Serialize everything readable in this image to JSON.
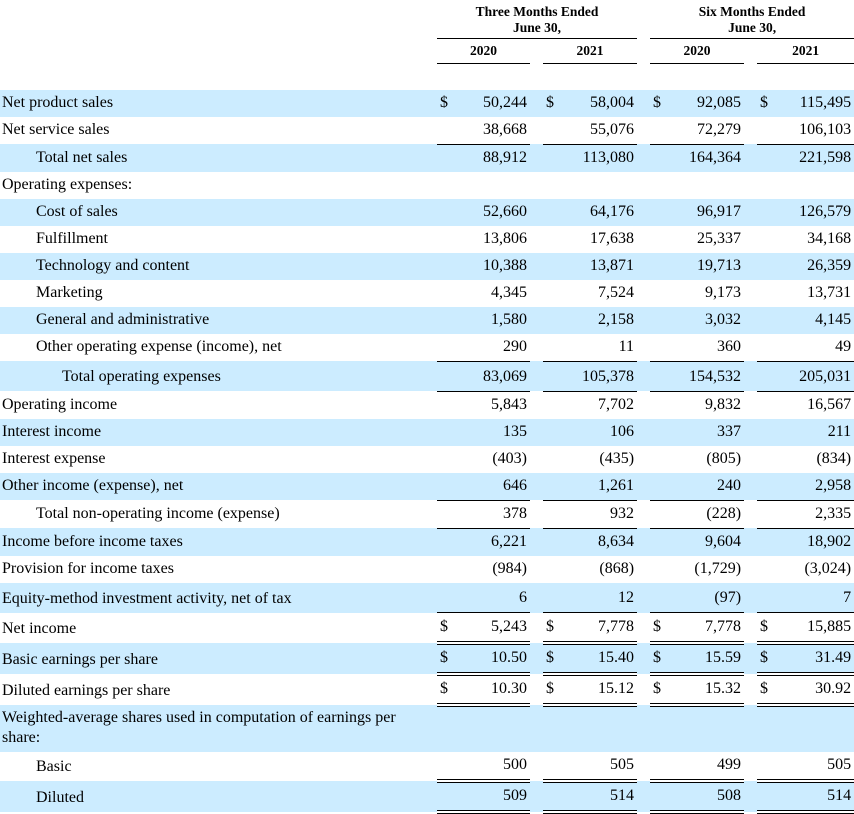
{
  "colors": {
    "row_stripe": "#CCECFF",
    "rule": "#000000",
    "background": "#FFFFFF"
  },
  "table": {
    "currency_symbol": "$",
    "groups": [
      {
        "title_line1": "Three Months Ended",
        "title_line2": "June 30,",
        "years": [
          "2020",
          "2021"
        ]
      },
      {
        "title_line1": "Six Months Ended",
        "title_line2": "June 30,",
        "years": [
          "2020",
          "2021"
        ]
      }
    ],
    "rows": [
      {
        "label": "Net product sales",
        "indent": 0,
        "shade": true,
        "dollar": true,
        "values": [
          "50,244",
          "58,004",
          "92,085",
          "115,495"
        ],
        "rule": "none",
        "tall": false
      },
      {
        "label": "Net service sales",
        "indent": 0,
        "shade": false,
        "dollar": false,
        "values": [
          "38,668",
          "55,076",
          "72,279",
          "106,103"
        ],
        "rule": "single",
        "tall": false
      },
      {
        "label": "Total net sales",
        "indent": 1,
        "shade": true,
        "dollar": false,
        "values": [
          "88,912",
          "113,080",
          "164,364",
          "221,598"
        ],
        "rule": "none",
        "tall": false
      },
      {
        "label": "Operating expenses:",
        "indent": 0,
        "shade": false,
        "dollar": false,
        "values": null,
        "rule": "none",
        "tall": false
      },
      {
        "label": "Cost of sales",
        "indent": 1,
        "shade": true,
        "dollar": false,
        "values": [
          "52,660",
          "64,176",
          "96,917",
          "126,579"
        ],
        "rule": "none",
        "tall": false
      },
      {
        "label": "Fulfillment",
        "indent": 1,
        "shade": false,
        "dollar": false,
        "values": [
          "13,806",
          "17,638",
          "25,337",
          "34,168"
        ],
        "rule": "none",
        "tall": false
      },
      {
        "label": "Technology and content",
        "indent": 1,
        "shade": true,
        "dollar": false,
        "values": [
          "10,388",
          "13,871",
          "19,713",
          "26,359"
        ],
        "rule": "none",
        "tall": false
      },
      {
        "label": "Marketing",
        "indent": 1,
        "shade": false,
        "dollar": false,
        "values": [
          "4,345",
          "7,524",
          "9,173",
          "13,731"
        ],
        "rule": "none",
        "tall": false
      },
      {
        "label": "General and administrative",
        "indent": 1,
        "shade": true,
        "dollar": false,
        "values": [
          "1,580",
          "2,158",
          "3,032",
          "4,145"
        ],
        "rule": "none",
        "tall": false
      },
      {
        "label": "Other operating expense (income), net",
        "indent": 1,
        "shade": false,
        "dollar": false,
        "values": [
          "290",
          "11",
          "360",
          "49"
        ],
        "rule": "single",
        "tall": false
      },
      {
        "label": "Total operating expenses",
        "indent": 2,
        "shade": true,
        "dollar": false,
        "values": [
          "83,069",
          "105,378",
          "154,532",
          "205,031"
        ],
        "rule": "single",
        "tall": true
      },
      {
        "label": "Operating income",
        "indent": 0,
        "shade": false,
        "dollar": false,
        "values": [
          "5,843",
          "7,702",
          "9,832",
          "16,567"
        ],
        "rule": "none",
        "tall": false
      },
      {
        "label": "Interest income",
        "indent": 0,
        "shade": true,
        "dollar": false,
        "values": [
          "135",
          "106",
          "337",
          "211"
        ],
        "rule": "none",
        "tall": false
      },
      {
        "label": "Interest expense",
        "indent": 0,
        "shade": false,
        "dollar": false,
        "values": [
          "(403)",
          "(435)",
          "(805)",
          "(834)"
        ],
        "rule": "none",
        "tall": false
      },
      {
        "label": "Other income (expense), net",
        "indent": 0,
        "shade": true,
        "dollar": false,
        "values": [
          "646",
          "1,261",
          "240",
          "2,958"
        ],
        "rule": "single",
        "tall": false
      },
      {
        "label": "Total non-operating income (expense)",
        "indent": 1,
        "shade": false,
        "dollar": false,
        "values": [
          "378",
          "932",
          "(228)",
          "2,335"
        ],
        "rule": "single",
        "tall": false
      },
      {
        "label": "Income before income taxes",
        "indent": 0,
        "shade": true,
        "dollar": false,
        "values": [
          "6,221",
          "8,634",
          "9,604",
          "18,902"
        ],
        "rule": "none",
        "tall": false
      },
      {
        "label": "Provision for income taxes",
        "indent": 0,
        "shade": false,
        "dollar": false,
        "values": [
          "(984)",
          "(868)",
          "(1,729)",
          "(3,024)"
        ],
        "rule": "none",
        "tall": false
      },
      {
        "label": "Equity-method investment activity, net of tax",
        "indent": 0,
        "shade": true,
        "dollar": false,
        "values": [
          "6",
          "12",
          "(97)",
          "7"
        ],
        "rule": "single",
        "tall": true
      },
      {
        "label": "Net income",
        "indent": 0,
        "shade": false,
        "dollar": true,
        "values": [
          "5,243",
          "7,778",
          "7,778",
          "15,885"
        ],
        "rule": "double",
        "tall": true
      },
      {
        "label": "Basic earnings per share",
        "indent": 0,
        "shade": true,
        "dollar": true,
        "values": [
          "10.50",
          "15.40",
          "15.59",
          "31.49"
        ],
        "rule": "double",
        "tall": true
      },
      {
        "label": "Diluted earnings per share",
        "indent": 0,
        "shade": false,
        "dollar": true,
        "values": [
          "10.30",
          "15.12",
          "15.32",
          "30.92"
        ],
        "rule": "double",
        "tall": true
      },
      {
        "label": "Weighted-average shares used in computation of earnings per share:",
        "indent": 0,
        "shade": true,
        "dollar": false,
        "values": null,
        "rule": "none",
        "tall": false
      },
      {
        "label": "Basic",
        "indent": 1,
        "shade": false,
        "dollar": false,
        "values": [
          "500",
          "505",
          "499",
          "505"
        ],
        "rule": "double",
        "tall": false
      },
      {
        "label": "Diluted",
        "indent": 1,
        "shade": true,
        "dollar": false,
        "values": [
          "509",
          "514",
          "508",
          "514"
        ],
        "rule": "double",
        "tall": false
      }
    ]
  }
}
